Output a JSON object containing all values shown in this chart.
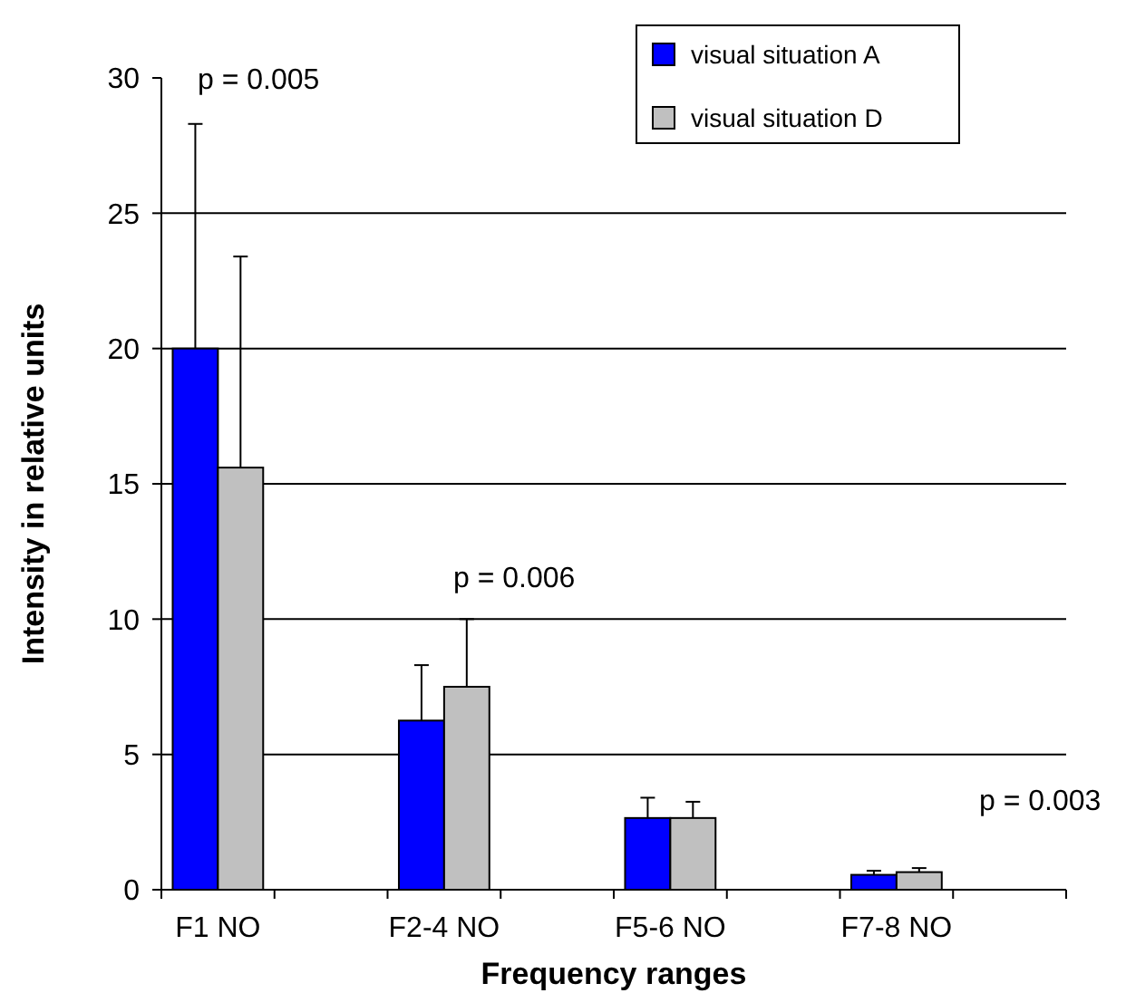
{
  "chart_data": {
    "type": "bar",
    "xlabel": "Frequency ranges",
    "ylabel": "Intensity in relative units",
    "categories": [
      "F1 NO",
      "F2-4 NO",
      "F5-6 NO",
      "F7-8 NO"
    ],
    "series": [
      {
        "name": "visual situation A",
        "color": "#0000ff",
        "values": [
          20.0,
          6.25,
          2.65,
          0.55
        ],
        "errors": [
          8.3,
          2.05,
          0.75,
          0.15
        ]
      },
      {
        "name": "visual situation D",
        "color": "#c0c0c0",
        "values": [
          15.6,
          7.5,
          2.65,
          0.65
        ],
        "errors": [
          7.8,
          2.5,
          0.6,
          0.15
        ]
      }
    ],
    "ylim": [
      0,
      30
    ],
    "yticks": [
      0,
      5,
      10,
      15,
      20,
      25,
      30
    ],
    "grid": "y",
    "legend": "top right",
    "annotations": [
      "p = 0.005",
      "p = 0.006",
      "p = 0.003"
    ]
  }
}
